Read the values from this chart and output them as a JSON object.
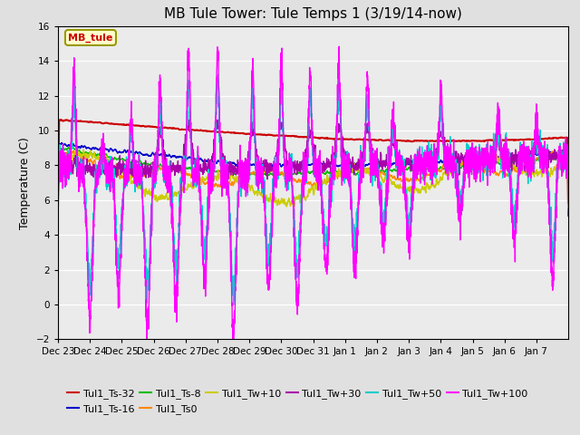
{
  "title": "MB Tule Tower: Tule Temps 1 (3/19/14-now)",
  "ylabel": "Temperature (C)",
  "ylim": [
    -2,
    16
  ],
  "yticks": [
    -2,
    0,
    2,
    4,
    6,
    8,
    10,
    12,
    14,
    16
  ],
  "background_color": "#e0e0e0",
  "plot_background": "#ebebeb",
  "legend_label": "MB_tule",
  "series": [
    {
      "label": "Tul1_Ts-32",
      "color": "#cc0000"
    },
    {
      "label": "Tul1_Ts-16",
      "color": "#0000cc"
    },
    {
      "label": "Tul1_Ts-8",
      "color": "#00bb00"
    },
    {
      "label": "Tul1_Ts0",
      "color": "#ff8800"
    },
    {
      "label": "Tul1_Tw+10",
      "color": "#cccc00"
    },
    {
      "label": "Tul1_Tw+30",
      "color": "#aa00aa"
    },
    {
      "label": "Tul1_Tw+50",
      "color": "#00cccc"
    },
    {
      "label": "Tul1_Tw+100",
      "color": "#ff00ff"
    }
  ],
  "x_tick_labels": [
    "Dec 23",
    "Dec 24",
    "Dec 25",
    "Dec 26",
    "Dec 27",
    "Dec 28",
    "Dec 29",
    "Dec 30",
    "Dec 31",
    "Jan 1",
    "Jan 2",
    "Jan 3",
    "Jan 4",
    "Jan 5",
    "Jan 6",
    "Jan 7"
  ],
  "title_fontsize": 11,
  "tick_fontsize": 7.5,
  "legend_fontsize": 8
}
